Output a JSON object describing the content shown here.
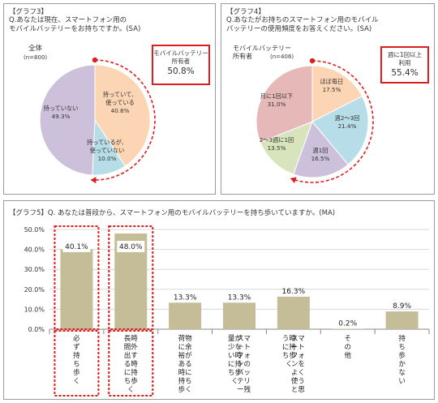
{
  "chart_data": [
    {
      "type": "pie",
      "title": "【グラフ3】",
      "subtitle": "Q.あなたは現在、スマートフォン用の\nモバイルバッテリーをお持ちですか。(SA)",
      "total_label": "全体",
      "n_label": "(n=800)",
      "categories": [
        "持っていて、\n使っている",
        "持っているが、\n使っていない",
        "持っていない"
      ],
      "values": [
        40.8,
        10.0,
        49.3
      ],
      "value_labels": [
        "40.8%",
        "10.0%",
        "49.3%"
      ],
      "colors": [
        "#fcd5b4",
        "#b7dde8",
        "#ccc0da"
      ],
      "callout": {
        "label": "モバイルバッテリー\n所有者",
        "value": "50.8%"
      }
    },
    {
      "type": "pie",
      "title": "【グラフ4】",
      "subtitle": "Q.あなたがお持ちのスマートフォン用のモバイル\nバッテリーの使用頻度をお答えください。(SA)",
      "total_label": "モバイルバッテリー\n所有者",
      "n_label": "(n=406)",
      "categories": [
        "ほぼ毎日",
        "週2～3回",
        "週1回",
        "2～3週に1回",
        "月に1回以下"
      ],
      "values": [
        17.5,
        21.4,
        16.5,
        13.5,
        31.0
      ],
      "value_labels": [
        "17.5%",
        "21.4%",
        "16.5%",
        "13.5%",
        "31.0%"
      ],
      "colors": [
        "#fcd5b4",
        "#b7dde8",
        "#ccc0da",
        "#d7e4bc",
        "#e6b9b8"
      ],
      "callout": {
        "label": "週に1回以上\n利用",
        "value": "55.4%"
      }
    },
    {
      "type": "bar",
      "title": "【グラフ5】Q. あなたは普段から、スマートフォン用のモバイルバッテリーを持ち歩いていますか。(MA)",
      "categories": [
        "必ず持ち歩く",
        "長時間外出する時に持ち歩く",
        "荷物に余裕がある時に持ち歩く",
        "スマートフォンのバッテリー残量が少ない時に持ち歩く",
        "スマートフォンをよく使うと思う時に持ち歩く",
        "その他",
        "持ち歩かない"
      ],
      "category_lines": [
        [
          "必",
          "ず",
          "持",
          "ち",
          "歩",
          "く"
        ],
        [
          "長時",
          "間外",
          "出す",
          "る時",
          "に持",
          "ち歩",
          "く"
        ],
        [
          "荷物",
          "に余",
          "裕が",
          "ある",
          "時に",
          "持ち",
          "歩く"
        ],
        [
          "スマ",
          "ート",
          "フォ",
          "ンの",
          "バッ",
          "テリ",
          "ー残",
          "量が",
          "少な",
          "い時",
          "に持",
          "ち歩",
          "く"
        ],
        [
          "スマ",
          "ート",
          "フォ",
          "ンを",
          "よく",
          "使う",
          "と思",
          "う時",
          "に持",
          "ち歩",
          "く"
        ],
        [
          "そ",
          "の",
          "他"
        ],
        [
          "持",
          "ち",
          "歩",
          "か",
          "な",
          "い"
        ]
      ],
      "values": [
        40.1,
        48.0,
        13.3,
        13.3,
        16.3,
        0.2,
        8.9
      ],
      "value_labels": [
        "40.1%",
        "48.0%",
        "13.3%",
        "13.3%",
        "16.3%",
        "0.2%",
        "8.9%"
      ],
      "ylim": [
        0,
        50
      ],
      "yticks": [
        "0.0%",
        "10.0%",
        "20.0%",
        "30.0%",
        "40.0%",
        "50.0%"
      ],
      "bar_color": "#c4bd97",
      "highlight": [
        "必ず持ち歩く",
        "長時間外出する時に持ち歩く"
      ]
    }
  ]
}
